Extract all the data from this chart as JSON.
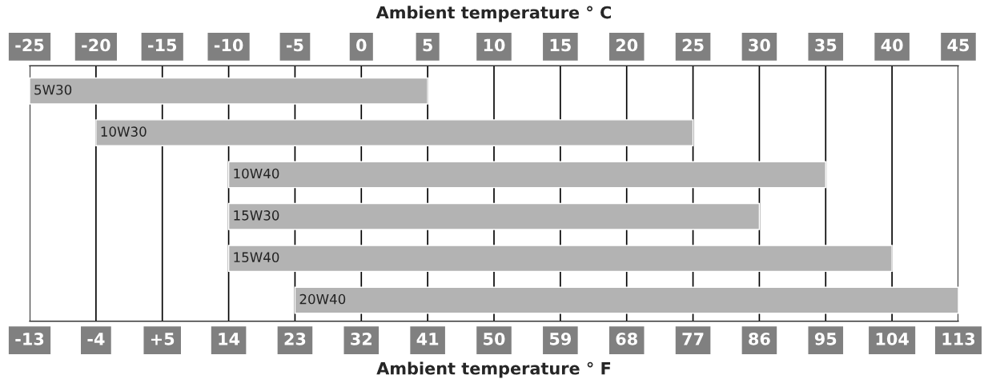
{
  "chart_data": {
    "type": "bar",
    "orientation": "horizontal",
    "title": "Ambient temperature ° C",
    "x2label": "Ambient temperature ° F",
    "categories": [
      "5W30",
      "10W30",
      "10W40",
      "15W30",
      "15W40",
      "20W40"
    ],
    "base": [
      -25,
      -20,
      -10,
      -10,
      -10,
      -5
    ],
    "values": [
      30,
      45,
      45,
      40,
      50,
      50
    ],
    "color": "#b3b3b3",
    "xlim": [
      -25,
      45
    ],
    "xticks": [
      -25,
      -20,
      -15,
      -10,
      -5,
      0,
      5,
      10,
      15,
      20,
      25,
      30,
      35,
      40,
      45
    ],
    "x2lim": [
      -13,
      113
    ],
    "x2ticks": [
      -13,
      -4,
      {
        "value": 5,
        "label": "+5"
      },
      14,
      23,
      32,
      41,
      50,
      59,
      68,
      77,
      86,
      95,
      104,
      113
    ],
    "grid": "x"
  }
}
